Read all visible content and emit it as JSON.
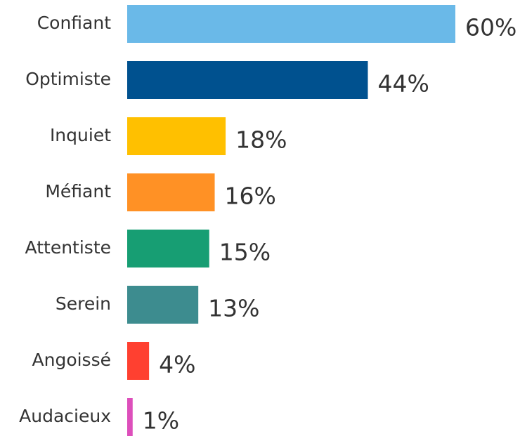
{
  "chart_data": {
    "type": "bar",
    "orientation": "horizontal",
    "categories": [
      "Confiant",
      "Optimiste",
      "Inquiet",
      "Méfiant",
      "Attentiste",
      "Serein",
      "Angoissé",
      "Audacieux"
    ],
    "values": [
      60,
      44,
      18,
      16,
      15,
      13,
      4,
      1
    ],
    "value_labels": [
      "60%",
      "44%",
      "18%",
      "16%",
      "15%",
      "13%",
      "4%",
      "1%"
    ],
    "colors": [
      "#6ab9e8",
      "#00518f",
      "#ffc000",
      "#ff9125",
      "#179e73",
      "#3d8c8f",
      "#ff4030",
      "#dd4fbb"
    ]
  }
}
